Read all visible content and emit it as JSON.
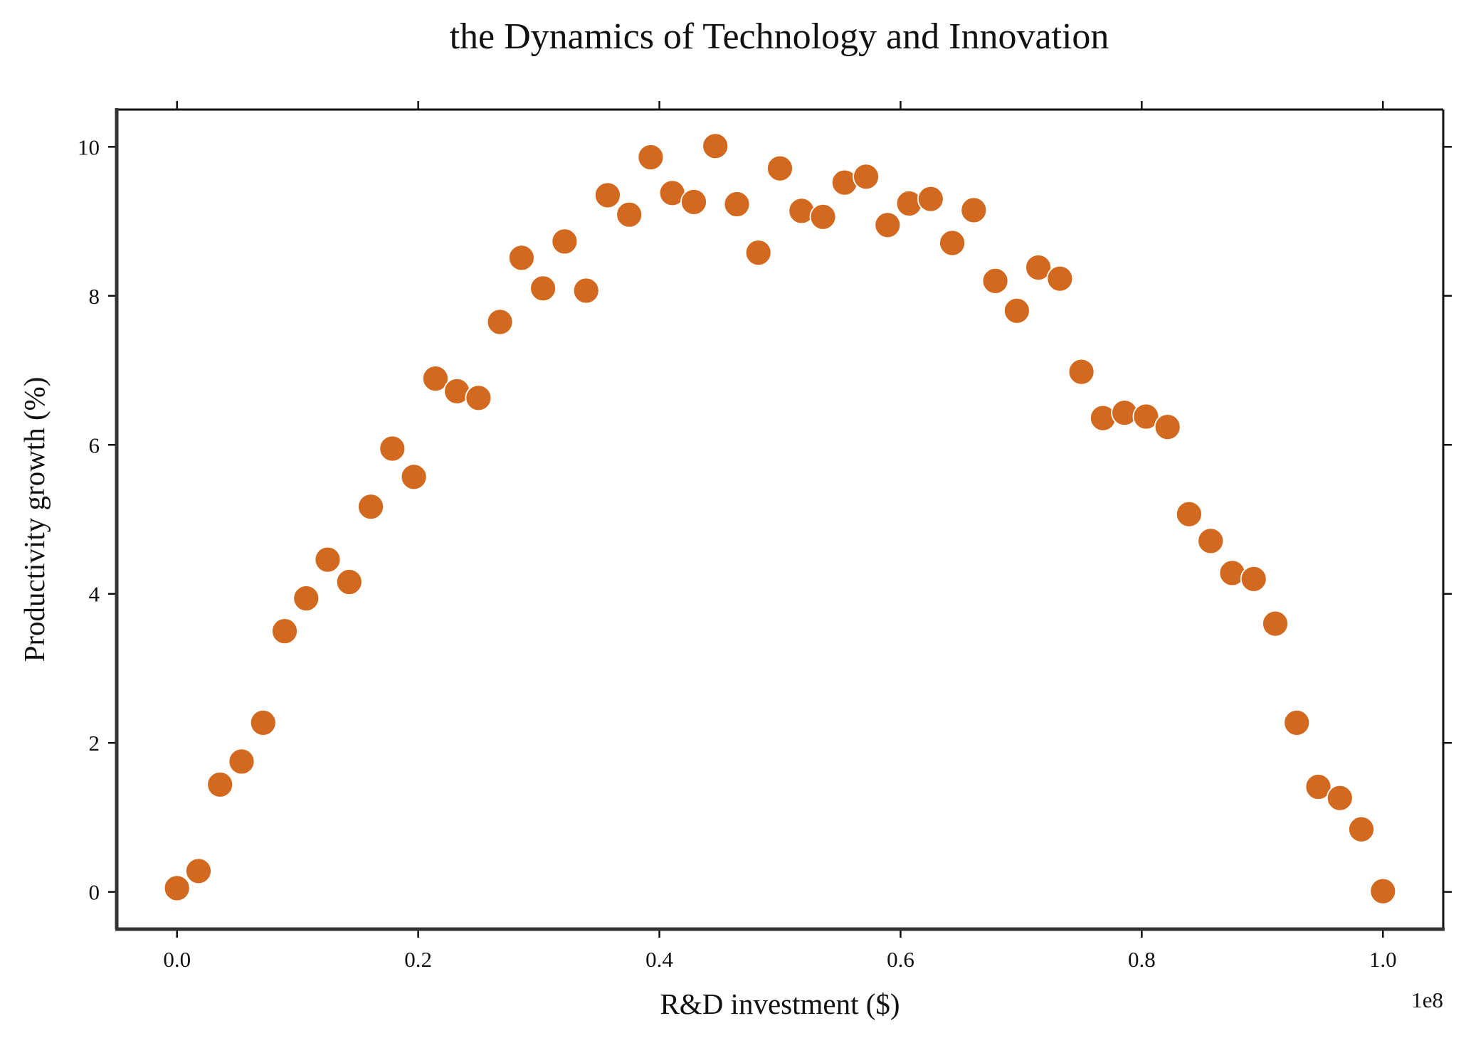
{
  "chart_data": {
    "type": "scatter",
    "title": "the Dynamics of Technology and Innovation",
    "xlabel": "R&D investment ($)",
    "ylabel": "Productivity growth (%)",
    "x_offset_label": "1e8",
    "xlim": [
      -0.05,
      1.05
    ],
    "ylim": [
      -0.5,
      10.5
    ],
    "x_ticks": [
      0.0,
      0.2,
      0.4,
      0.6,
      0.8,
      1.0
    ],
    "x_tick_labels": [
      "0.0",
      "0.2",
      "0.4",
      "0.6",
      "0.8",
      "1.0"
    ],
    "y_ticks": [
      0,
      2,
      4,
      6,
      8,
      10
    ],
    "y_tick_labels": [
      "0",
      "2",
      "4",
      "6",
      "8",
      "10"
    ],
    "grid": false,
    "marker_color": "#d2691e",
    "marker_edge_color": "#ffffff",
    "x": [
      0.0,
      0.01786,
      0.03571,
      0.05357,
      0.07143,
      0.08929,
      0.10714,
      0.125,
      0.14286,
      0.16071,
      0.17857,
      0.19643,
      0.21429,
      0.23214,
      0.25,
      0.26786,
      0.28571,
      0.30357,
      0.32143,
      0.33929,
      0.35714,
      0.375,
      0.39286,
      0.41071,
      0.42857,
      0.44643,
      0.46429,
      0.48214,
      0.5,
      0.51786,
      0.53571,
      0.55357,
      0.57143,
      0.58929,
      0.60714,
      0.625,
      0.64286,
      0.66071,
      0.67857,
      0.69643,
      0.71429,
      0.73214,
      0.75,
      0.76786,
      0.78571,
      0.80357,
      0.82143,
      0.83929,
      0.85714,
      0.875,
      0.89286,
      0.91071,
      0.92857,
      0.94643,
      0.96429,
      0.98214,
      1.0
    ],
    "y": [
      0.05,
      0.28,
      1.44,
      1.75,
      2.27,
      3.5,
      3.94,
      4.46,
      4.16,
      5.17,
      5.95,
      5.57,
      6.89,
      6.72,
      6.63,
      7.65,
      8.51,
      8.1,
      8.73,
      8.07,
      9.35,
      9.09,
      9.86,
      9.38,
      9.26,
      10.01,
      9.23,
      8.58,
      9.71,
      9.14,
      9.06,
      9.52,
      9.6,
      8.95,
      9.24,
      9.3,
      8.71,
      9.15,
      8.2,
      7.8,
      8.38,
      8.23,
      6.98,
      6.36,
      6.43,
      6.38,
      6.24,
      5.07,
      4.71,
      4.28,
      4.2,
      3.6,
      2.27,
      1.41,
      1.26,
      0.84,
      0.01
    ]
  }
}
